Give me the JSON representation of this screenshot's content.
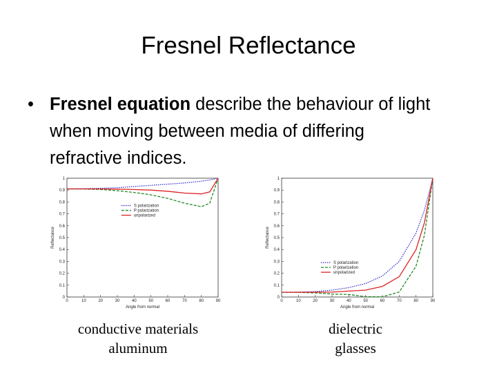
{
  "title": "Fresnel Reflectance",
  "bullet": {
    "bold": "Fresnel equation",
    "rest": " describe the behaviour of light when moving between media of differing refractive indices."
  },
  "captions": [
    [
      "conductive materials",
      "aluminum"
    ],
    [
      "dielectric",
      "glasses"
    ]
  ],
  "chart_data": [
    {
      "type": "line",
      "xlabel": "Angle from normal",
      "ylabel": "Reflectance",
      "xlim": [
        0,
        90
      ],
      "ylim": [
        0,
        1
      ],
      "xticks": [
        0,
        10,
        20,
        30,
        40,
        50,
        60,
        70,
        80,
        90
      ],
      "yticks": [
        0,
        0.1,
        0.2,
        0.3,
        0.4,
        0.5,
        0.6,
        0.7,
        0.8,
        0.9,
        1
      ],
      "legend": "upper center",
      "x": [
        0,
        10,
        20,
        30,
        40,
        50,
        60,
        70,
        80,
        85,
        90
      ],
      "series": [
        {
          "name": "S polarization",
          "color": "#3333cc",
          "style": "dotted",
          "values": [
            0.91,
            0.912,
            0.915,
            0.92,
            0.93,
            0.94,
            0.95,
            0.96,
            0.975,
            0.985,
            1
          ]
        },
        {
          "name": "P polarization",
          "color": "#228822",
          "style": "dashed",
          "values": [
            0.91,
            0.909,
            0.905,
            0.895,
            0.88,
            0.86,
            0.83,
            0.79,
            0.76,
            0.79,
            1
          ]
        },
        {
          "name": "unpolarized",
          "color": "#dd2222",
          "style": "solid",
          "values": [
            0.91,
            0.91,
            0.91,
            0.908,
            0.905,
            0.9,
            0.89,
            0.875,
            0.868,
            0.885,
            1
          ]
        }
      ]
    },
    {
      "type": "line",
      "xlabel": "Angle from normal",
      "ylabel": "Reflectance",
      "xlim": [
        0,
        90
      ],
      "ylim": [
        0,
        1
      ],
      "xticks": [
        0,
        10,
        20,
        30,
        40,
        50,
        60,
        70,
        80,
        90
      ],
      "yticks": [
        0,
        0.1,
        0.2,
        0.3,
        0.4,
        0.5,
        0.6,
        0.7,
        0.8,
        0.9,
        1
      ],
      "legend": "lower right",
      "x": [
        0,
        10,
        20,
        30,
        40,
        50,
        60,
        70,
        80,
        85,
        90
      ],
      "series": [
        {
          "name": "S polarization",
          "color": "#3333cc",
          "style": "dotted",
          "values": [
            0.04,
            0.0413,
            0.0458,
            0.0577,
            0.079,
            0.1136,
            0.177,
            0.3,
            0.538,
            0.73,
            1
          ]
        },
        {
          "name": "P polarization",
          "color": "#228822",
          "style": "dashed",
          "values": [
            0.04,
            0.0387,
            0.0347,
            0.0252,
            0.0212,
            0.003,
            0.0017,
            0.0424,
            0.259,
            0.52,
            1
          ]
        },
        {
          "name": "unpolarized",
          "color": "#dd2222",
          "style": "solid",
          "values": [
            0.04,
            0.04,
            0.0403,
            0.0415,
            0.0501,
            0.0583,
            0.0894,
            0.1712,
            0.3985,
            0.625,
            1
          ]
        }
      ]
    }
  ]
}
